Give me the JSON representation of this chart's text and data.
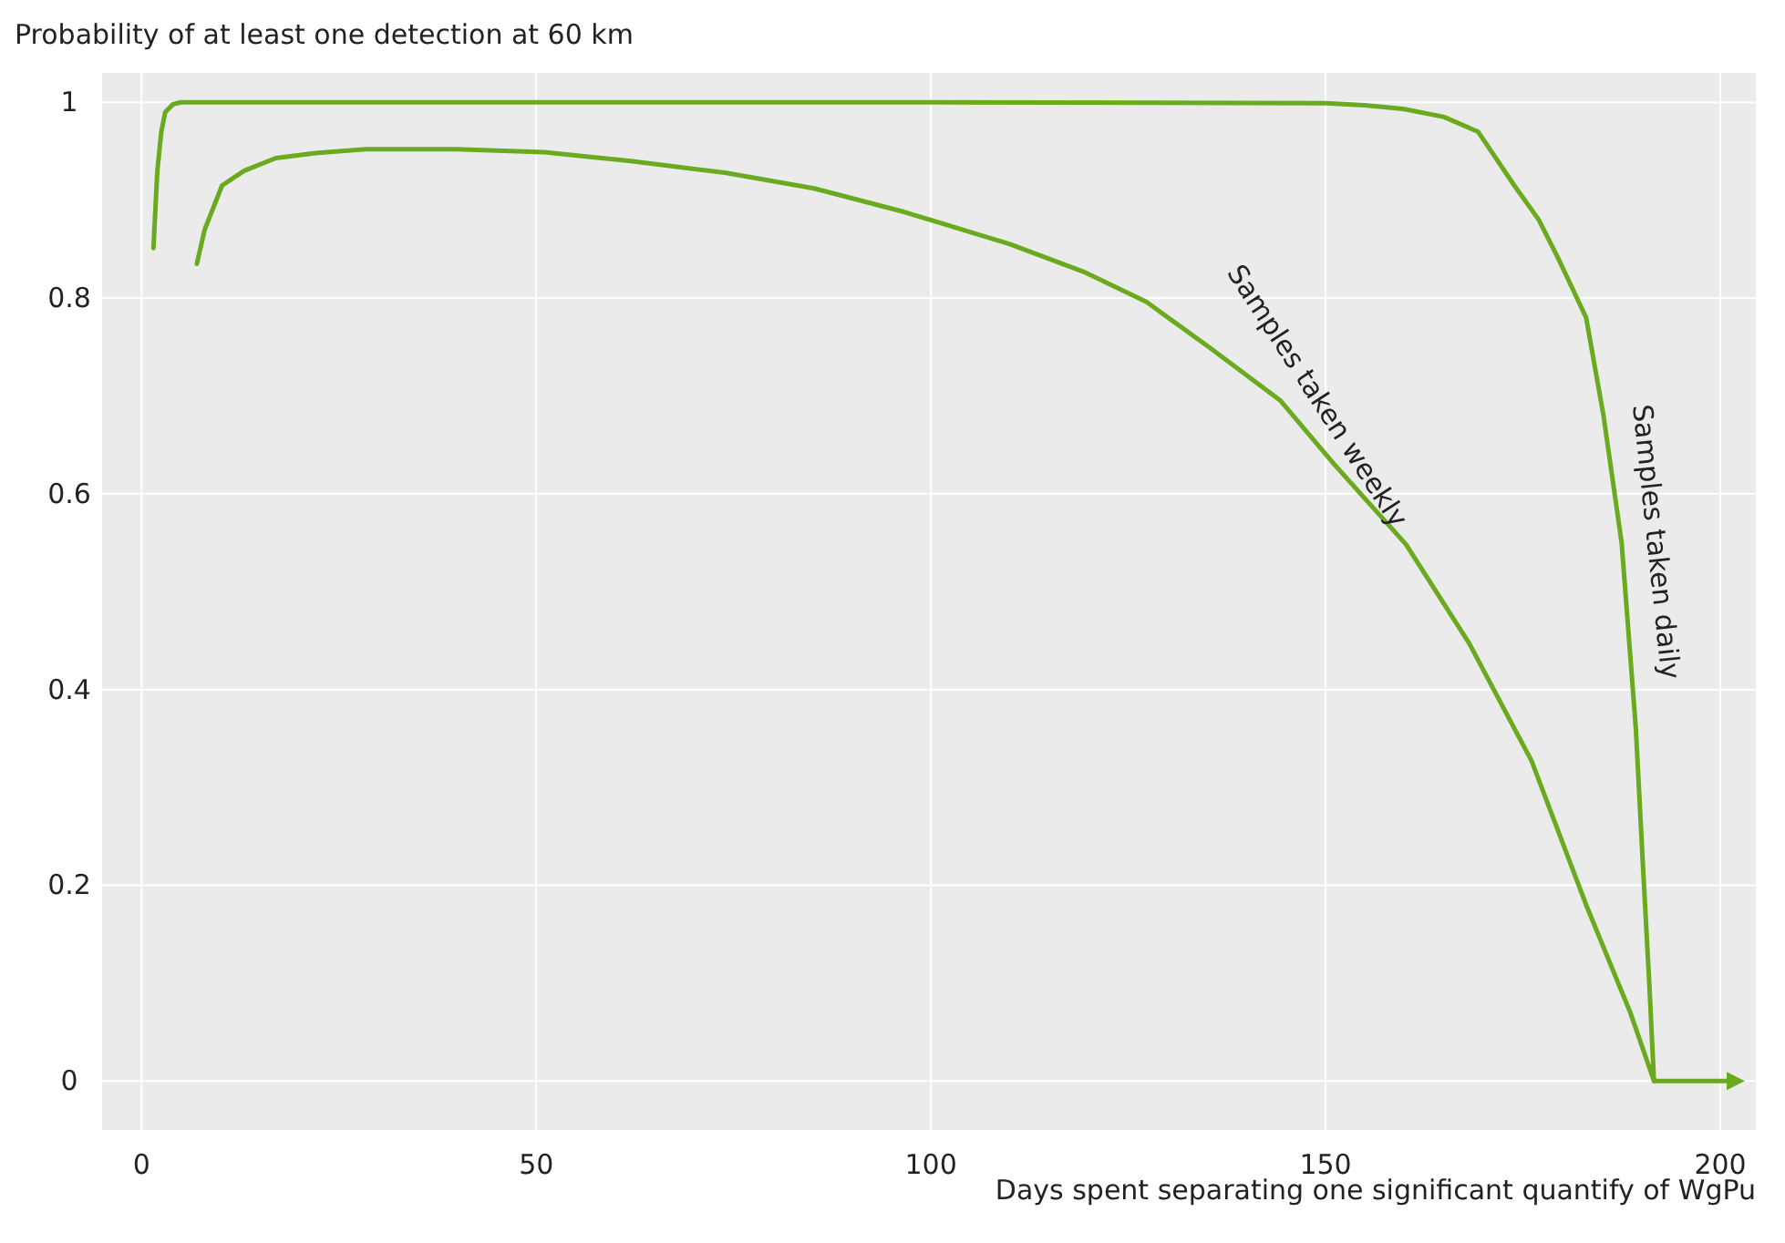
{
  "chart_data": {
    "type": "line",
    "ylabel": "Probability of at least one detection at 60 km",
    "xlabel": "Days spent separating one significant quantify of WgPu",
    "xlim": [
      -5,
      204.5
    ],
    "ylim": [
      -0.05,
      1.03
    ],
    "xticks": [
      0,
      50,
      100,
      150,
      200
    ],
    "yticks": [
      0,
      0.2,
      0.4,
      0.6,
      0.8,
      1
    ],
    "grid": true,
    "marker": "none",
    "line_style": "solid",
    "series": [
      {
        "name": "Samples taken daily",
        "color": "#6aaa1e",
        "x": [
          1.5,
          2,
          2.5,
          3,
          4,
          5,
          50,
          100,
          150,
          155,
          160,
          165,
          169.3,
          173.9,
          177,
          179.5,
          183,
          185.2,
          187.5,
          189.3,
          190.2,
          191,
          191.6
        ],
        "values": [
          0.851,
          0.93,
          0.97,
          0.99,
          0.998,
          1,
          1,
          1,
          0.999,
          0.997,
          0.993,
          0.985,
          0.97,
          0.915,
          0.88,
          0.84,
          0.78,
          0.68,
          0.55,
          0.36,
          0.22,
          0.1,
          0
        ]
      },
      {
        "name": "Samples taken weekly",
        "color": "#6aaa1e",
        "x": [
          7,
          8,
          10.2,
          13,
          17,
          22,
          28.4,
          39.8,
          51,
          62,
          73.9,
          85.2,
          96.6,
          110,
          119.3,
          127.3,
          135.2,
          144.3,
          151.1,
          160.2,
          168.2,
          176.1,
          183,
          188.6,
          191.6
        ],
        "values": [
          0.835,
          0.87,
          0.915,
          0.93,
          0.943,
          0.948,
          0.952,
          0.952,
          0.949,
          0.94,
          0.928,
          0.912,
          0.888,
          0.855,
          0.827,
          0.796,
          0.75,
          0.695,
          0.63,
          0.548,
          0.447,
          0.327,
          0.18,
          0.07,
          0
        ]
      }
    ]
  }
}
